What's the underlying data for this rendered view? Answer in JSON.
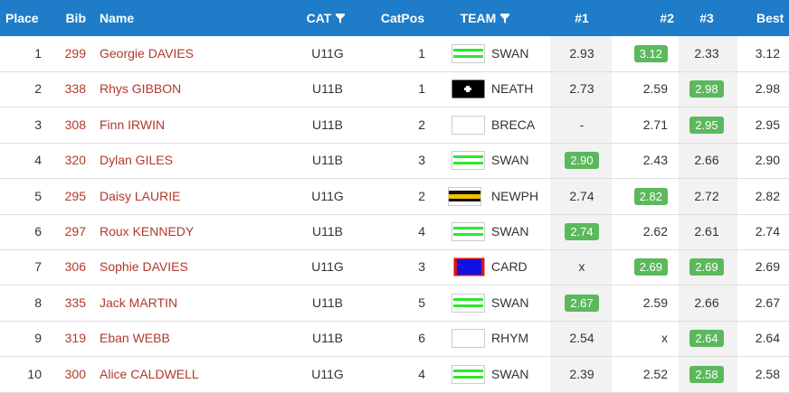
{
  "table": {
    "header": [
      "Place",
      "Bib",
      "Name",
      "CAT",
      "CatPos",
      "TEAM",
      "#1",
      "#2",
      "#3",
      "Best"
    ],
    "rows": [
      [
        "1",
        "299",
        "Georgie DAVIES",
        "U11G",
        "1",
        "SWAN",
        "2.93",
        "3.12",
        "2.33",
        "3.12"
      ],
      [
        "2",
        "338",
        "Rhys GIBBON",
        "U11B",
        "1",
        "NEATH",
        "2.73",
        "2.59",
        "2.98",
        "2.98"
      ],
      [
        "3",
        "308",
        "Finn IRWIN",
        "U11B",
        "2",
        "BRECA",
        "-",
        "2.71",
        "2.95",
        "2.95"
      ],
      [
        "4",
        "320",
        "Dylan GILES",
        "U11B",
        "3",
        "SWAN",
        "2.90",
        "2.43",
        "2.66",
        "2.90"
      ],
      [
        "5",
        "295",
        "Daisy LAURIE",
        "U11G",
        "2",
        "NEWPH",
        "2.74",
        "2.82",
        "2.72",
        "2.82"
      ],
      [
        "6",
        "297",
        "Roux KENNEDY",
        "U11B",
        "4",
        "SWAN",
        "2.74",
        "2.62",
        "2.61",
        "2.74"
      ],
      [
        "7",
        "306",
        "Sophie DAVIES",
        "U11G",
        "3",
        "CARD",
        "x",
        "2.69",
        "2.69",
        "2.69"
      ],
      [
        "8",
        "335",
        "Jack MARTIN",
        "U11B",
        "5",
        "SWAN",
        "2.67",
        "2.59",
        "2.66",
        "2.67"
      ],
      [
        "9",
        "319",
        "Eban WEBB",
        "U11B",
        "6",
        "RHYM",
        "2.54",
        "x",
        "2.64",
        "2.64"
      ],
      [
        "10",
        "300",
        "Alice CALDWELL",
        "U11G",
        "4",
        "SWAN",
        "2.39",
        "2.52",
        "2.58",
        "2.58"
      ]
    ]
  }
}
